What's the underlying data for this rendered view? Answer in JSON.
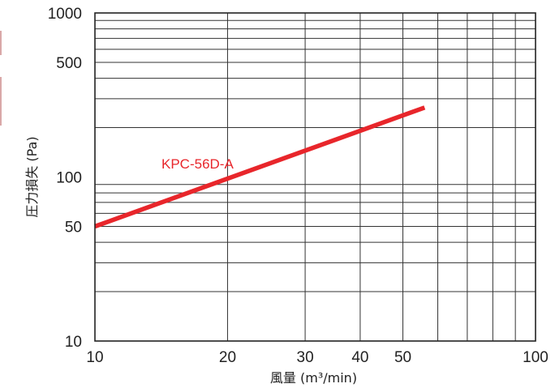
{
  "chart_data": {
    "type": "line",
    "title": "",
    "xlabel": "風量 (m³/min)",
    "ylabel": "圧力損失 (Pa)",
    "x_scale": "log",
    "y_scale": "log",
    "xlim": [
      10,
      100
    ],
    "ylim": [
      10,
      1000
    ],
    "x_tick_labels": [
      {
        "value": 10,
        "label": "10"
      },
      {
        "value": 20,
        "label": "20"
      },
      {
        "value": 30,
        "label": "30"
      },
      {
        "value": 40,
        "label": "40"
      },
      {
        "value": 50,
        "label": "50"
      },
      {
        "value": 100,
        "label": "100"
      }
    ],
    "y_tick_labels": [
      {
        "value": 10,
        "label": "10"
      },
      {
        "value": 50,
        "label": "50"
      },
      {
        "value": 100,
        "label": "100"
      },
      {
        "value": 500,
        "label": "500"
      },
      {
        "value": 1000,
        "label": "1000"
      }
    ],
    "x_grid": [
      20,
      30,
      40,
      50,
      60,
      70,
      80,
      90
    ],
    "y_grid": [
      20,
      30,
      40,
      50,
      60,
      70,
      80,
      90,
      200,
      300,
      400,
      500,
      600,
      700,
      800,
      900
    ],
    "grid": true,
    "series": [
      {
        "name": "KPC-56D-A",
        "color": "#e8262b",
        "x": [
          10,
          56
        ],
        "y": [
          50,
          265
        ]
      }
    ]
  }
}
